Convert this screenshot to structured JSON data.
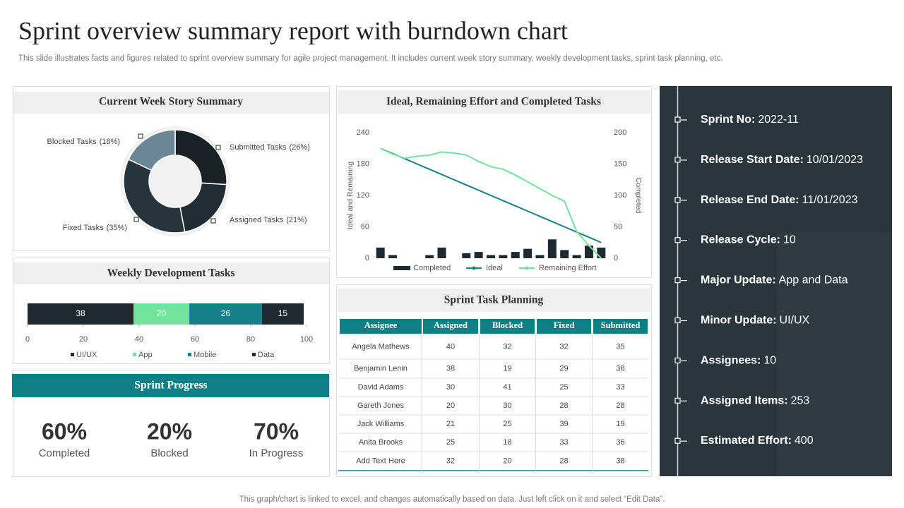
{
  "header": {
    "title": "Sprint overview summary report with burndown chart",
    "subtitle": "This slide illustrates facts and figures related to sprint overview summary for agile project management. It includes current week story summary, weekly development tasks, sprint task planning, etc."
  },
  "chart_data": [
    {
      "type": "donut",
      "title": "Current Week Story Summary",
      "categories": [
        "Submitted Tasks",
        "Assigned Tasks",
        "Fixed Tasks",
        "Blocked Tasks"
      ],
      "values": [
        26,
        21,
        35,
        18
      ],
      "value_labels": [
        "(26%)",
        "(21%)",
        "(35%)",
        "(18%)"
      ],
      "colors": [
        "#1b2226",
        "#222d33",
        "#27343b",
        "#6b8797"
      ]
    },
    {
      "type": "stacked_bar",
      "title": "Weekly Development Tasks",
      "orientation": "horizontal",
      "series": [
        {
          "name": "UI/UX",
          "color": "#1e2a30",
          "values": [
            38
          ]
        },
        {
          "name": "App",
          "color": "#72e39c",
          "values": [
            20
          ]
        },
        {
          "name": "Mobile",
          "color": "#13808a",
          "values": [
            26
          ]
        },
        {
          "name": "Data",
          "color": "#1e2a30",
          "values": [
            15
          ]
        }
      ],
      "xlim": [
        0,
        100
      ],
      "xticks": [
        0,
        20,
        40,
        60,
        80,
        100
      ]
    },
    {
      "type": "combo",
      "title": "Ideal, Remaining Effort and Completed Tasks",
      "y_label": "Ideal and Remaining",
      "y2_label": "Completed",
      "categories": [
        null,
        null,
        null,
        null,
        null,
        null,
        null,
        null,
        null,
        null,
        null,
        null,
        null,
        null,
        null,
        null,
        null,
        null,
        null
      ],
      "series": [
        {
          "name": "Completed",
          "type": "bar",
          "axis": "y2",
          "color": "#1e2a30",
          "values": [
            17,
            5,
            0,
            0,
            5,
            17,
            0,
            8,
            10,
            5,
            5,
            10,
            15,
            5,
            30,
            13,
            5,
            20,
            17
          ]
        },
        {
          "name": "Ideal",
          "type": "line",
          "color": "#13808a",
          "values": [
            210,
            200,
            190,
            180,
            170,
            160,
            150,
            140,
            130,
            120,
            110,
            100,
            90,
            80,
            70,
            60,
            50,
            40,
            30
          ]
        },
        {
          "name": "Remaining Effort",
          "type": "line",
          "color": "#72e39c",
          "values": [
            210,
            199,
            191,
            195,
            197,
            203,
            201,
            197,
            185,
            175,
            170,
            159,
            146,
            133,
            120,
            109,
            51,
            24,
            0
          ]
        }
      ],
      "ylim": [
        0,
        240
      ],
      "yticks": [
        0,
        60,
        120,
        180,
        240
      ],
      "y2lim": [
        0,
        200
      ],
      "y2ticks": [
        0,
        50,
        100,
        150,
        200
      ]
    }
  ],
  "sprint_progress": {
    "title": "Sprint Progress",
    "items": [
      {
        "value": "60%",
        "label": "Completed"
      },
      {
        "value": "20%",
        "label": "Blocked"
      },
      {
        "value": "70%",
        "label": "In Progress"
      }
    ]
  },
  "task_planning": {
    "title": "Sprint Task Planning",
    "columns": [
      "Assignee",
      "Assigned",
      "Blocked",
      "Fixed",
      "Submitted"
    ],
    "rows": [
      [
        "Angela Mathews",
        40,
        32,
        32,
        35
      ],
      [
        "Benjamin  Lenin",
        38,
        19,
        29,
        38
      ],
      [
        "David Adams",
        30,
        41,
        25,
        33
      ],
      [
        "Gareth Jones",
        20,
        30,
        28,
        28
      ],
      [
        "Jack Williams",
        21,
        25,
        39,
        19
      ],
      [
        "Anita Brooks",
        25,
        18,
        33,
        36
      ],
      [
        "Add Text Here",
        32,
        20,
        28,
        38
      ]
    ]
  },
  "sprint_info": [
    {
      "label": "Sprint No:",
      "value": "2022-11"
    },
    {
      "label": "Release Start Date:",
      "value": "10/01/2023"
    },
    {
      "label": "Release End Date:",
      "value": "11/01/2023"
    },
    {
      "label": "Release Cycle:",
      "value": "10"
    },
    {
      "label": "Major Update:",
      "value": "App and Data"
    },
    {
      "label": "Minor Update:",
      "value": "UI/UX"
    },
    {
      "label": "Assignees:",
      "value": "10"
    },
    {
      "label": "Assigned Items:",
      "value": "253"
    },
    {
      "label": "Estimated Effort:",
      "value": "400"
    }
  ],
  "footer": "This graph/chart is linked to excel,  and changes automatically based on data. Just left click on it and select “Edit Data”."
}
